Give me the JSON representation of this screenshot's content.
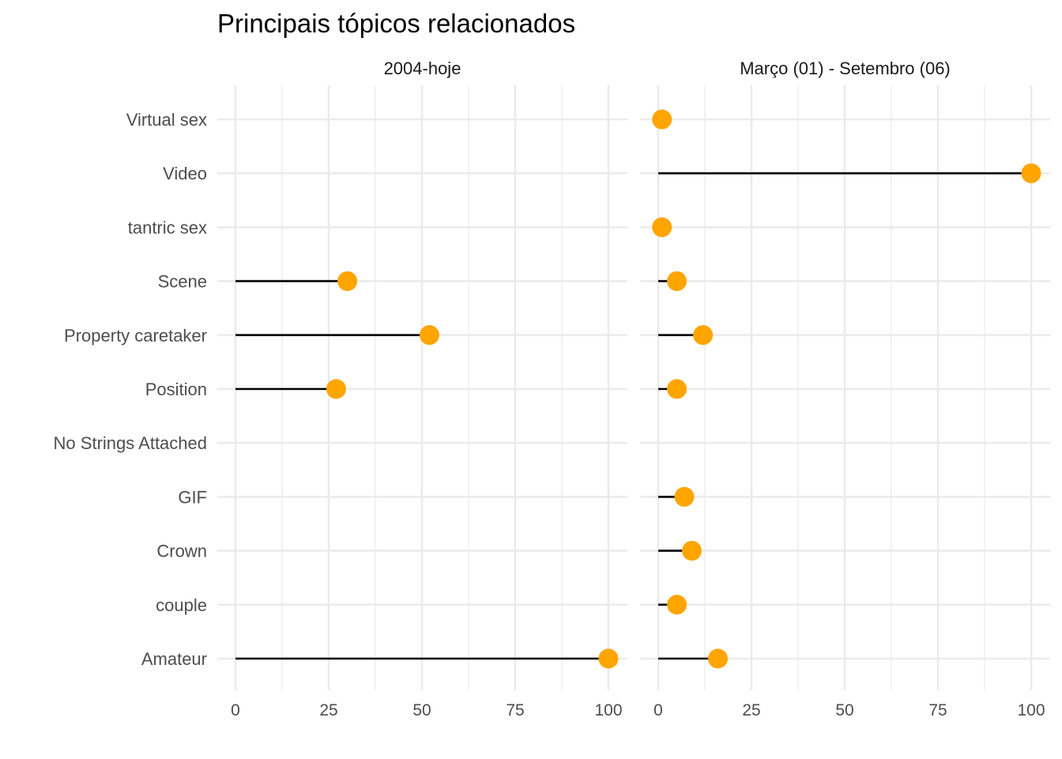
{
  "chart_data": {
    "type": "lollipop",
    "title": "Principais tópicos relacionados",
    "categories": [
      "Virtual sex",
      "Video",
      "tantric sex",
      "Scene",
      "Property caretaker",
      "Position",
      "No Strings Attached",
      "GIF",
      "Crown",
      "couple",
      "Amateur"
    ],
    "xlim": [
      0,
      100
    ],
    "xticks": [
      0,
      25,
      50,
      75,
      100
    ],
    "grid": true,
    "point_color": "#FFA500",
    "line_color": "#000000",
    "panels": [
      {
        "name": "2004-hoje",
        "values": [
          null,
          null,
          null,
          30,
          52,
          27,
          null,
          null,
          null,
          null,
          100
        ]
      },
      {
        "name": "Março (01) - Setembro (06)",
        "values": [
          1,
          100,
          1,
          5,
          12,
          5,
          null,
          7,
          9,
          5,
          16
        ]
      }
    ]
  }
}
